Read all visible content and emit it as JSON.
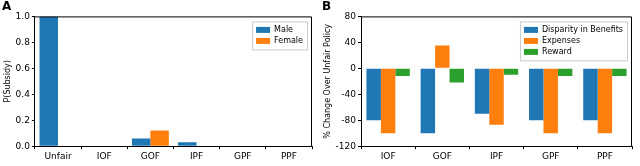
{
  "chart_data": [
    {
      "type": "bar",
      "title": "A",
      "ylabel": "P(Subsidy)",
      "categories": [
        "Unfair",
        "IOF",
        "GOF",
        "IPF",
        "GPF",
        "PPF"
      ],
      "series": [
        {
          "name": "Male",
          "color": "#1f77b4",
          "values": [
            1.0,
            0,
            0.06,
            0.03,
            0,
            0
          ]
        },
        {
          "name": "Female",
          "color": "#ff7f0e",
          "values": [
            0,
            0,
            0.12,
            0,
            0,
            0
          ]
        }
      ],
      "ylim": [
        0,
        1.0
      ],
      "yticks": [
        {
          "value": 0,
          "label": "0.0"
        },
        0.2,
        0.4,
        0.6,
        0.8,
        {
          "value": 1,
          "label": "1.0"
        }
      ],
      "grid": false,
      "legend": "upper right"
    },
    {
      "type": "bar",
      "title": "B",
      "ylabel": "% Change Over Unfair Policy",
      "categories": [
        "IOF",
        "GOF",
        "IPF",
        "GPF",
        "PPF"
      ],
      "series": [
        {
          "name": "Disparity in Benefits",
          "color": "#1f77b4",
          "values": [
            -80,
            -100,
            -70,
            -80,
            -80
          ]
        },
        {
          "name": "Expenses",
          "color": "#ff7f0e",
          "values": [
            -100,
            35,
            -87,
            -100,
            -100
          ]
        },
        {
          "name": "Reward",
          "color": "#2ca02c",
          "values": [
            -12,
            -22,
            -10,
            -12,
            -12
          ]
        }
      ],
      "ylim": [
        -120,
        80
      ],
      "yticks": [
        -120,
        -80,
        -40,
        0,
        40,
        80
      ],
      "grid": false,
      "legend": "upper right"
    }
  ]
}
